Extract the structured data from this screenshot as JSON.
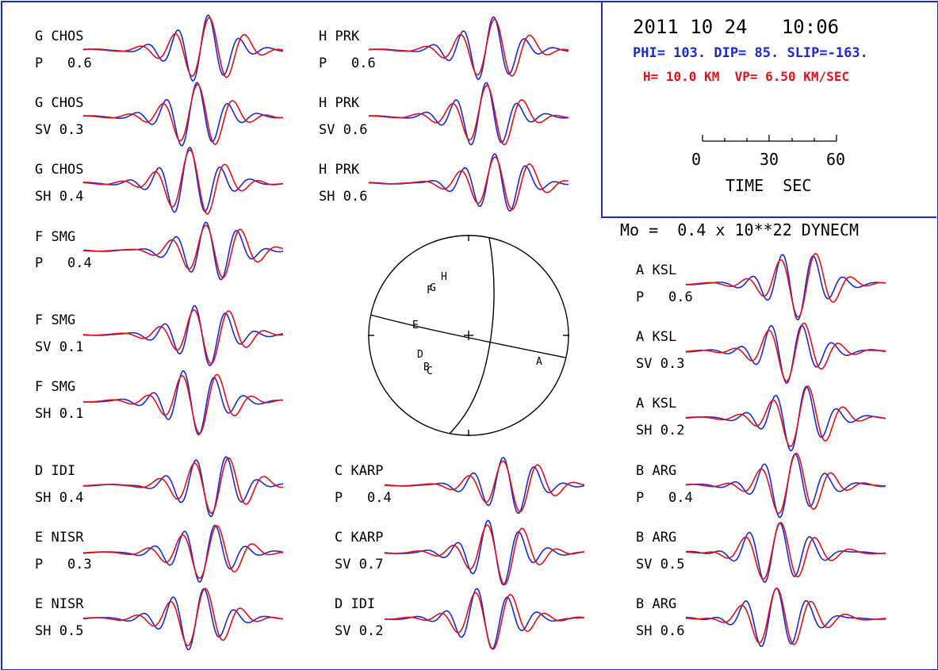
{
  "header": {
    "date_time": "2011 10 24   10:06",
    "mechanism": "PHI= 103. DIP= 85. SLIP=-163.",
    "depth_velocity": "H= 10.0 KM  VP= 6.50 KM/SEC",
    "moment": "Mo =  0.4 x 10**22 DYNECM"
  },
  "time_scale": {
    "ticks": [
      "0",
      "30",
      "60"
    ],
    "range_sec": [
      0,
      60
    ],
    "label": "TIME  SEC"
  },
  "colors": {
    "observed": "#1c2bd0",
    "synthetic": "#e0101c",
    "frame": "#1c2bd0"
  },
  "stations": [
    {
      "code": "G",
      "name": "CHOS",
      "phase": "P",
      "amp": "0.6"
    },
    {
      "code": "G",
      "name": "CHOS",
      "phase": "SV",
      "amp": "0.3"
    },
    {
      "code": "G",
      "name": "CHOS",
      "phase": "SH",
      "amp": "0.4"
    },
    {
      "code": "F",
      "name": "SMG",
      "phase": "P",
      "amp": "0.4"
    },
    {
      "code": "F",
      "name": "SMG",
      "phase": "SV",
      "amp": "0.1"
    },
    {
      "code": "F",
      "name": "SMG",
      "phase": "SH",
      "amp": "0.1"
    },
    {
      "code": "D",
      "name": "IDI",
      "phase": "SH",
      "amp": "0.4"
    },
    {
      "code": "E",
      "name": "NISR",
      "phase": "P",
      "amp": "0.3"
    },
    {
      "code": "E",
      "name": "NISR",
      "phase": "SH",
      "amp": "0.5"
    },
    {
      "code": "H",
      "name": "PRK",
      "phase": "P",
      "amp": "0.6"
    },
    {
      "code": "H",
      "name": "PRK",
      "phase": "SV",
      "amp": "0.6"
    },
    {
      "code": "H",
      "name": "PRK",
      "phase": "SH",
      "amp": "0.6"
    },
    {
      "code": "C",
      "name": "KARP",
      "phase": "P",
      "amp": "0.4"
    },
    {
      "code": "C",
      "name": "KARP",
      "phase": "SV",
      "amp": "0.7"
    },
    {
      "code": "D",
      "name": "IDI",
      "phase": "SV",
      "amp": "0.2"
    },
    {
      "code": "A",
      "name": "KSL",
      "phase": "P",
      "amp": "0.6"
    },
    {
      "code": "A",
      "name": "KSL",
      "phase": "SV",
      "amp": "0.3"
    },
    {
      "code": "A",
      "name": "KSL",
      "phase": "SH",
      "amp": "0.2"
    },
    {
      "code": "B",
      "name": "ARG",
      "phase": "P",
      "amp": "0.4"
    },
    {
      "code": "B",
      "name": "ARG",
      "phase": "SV",
      "amp": "0.5"
    },
    {
      "code": "B",
      "name": "ARG",
      "phase": "SH",
      "amp": "0.6"
    }
  ],
  "beachball": {
    "letters": [
      "F",
      "G",
      "H",
      "E",
      "D",
      "B",
      "C",
      "A"
    ]
  }
}
